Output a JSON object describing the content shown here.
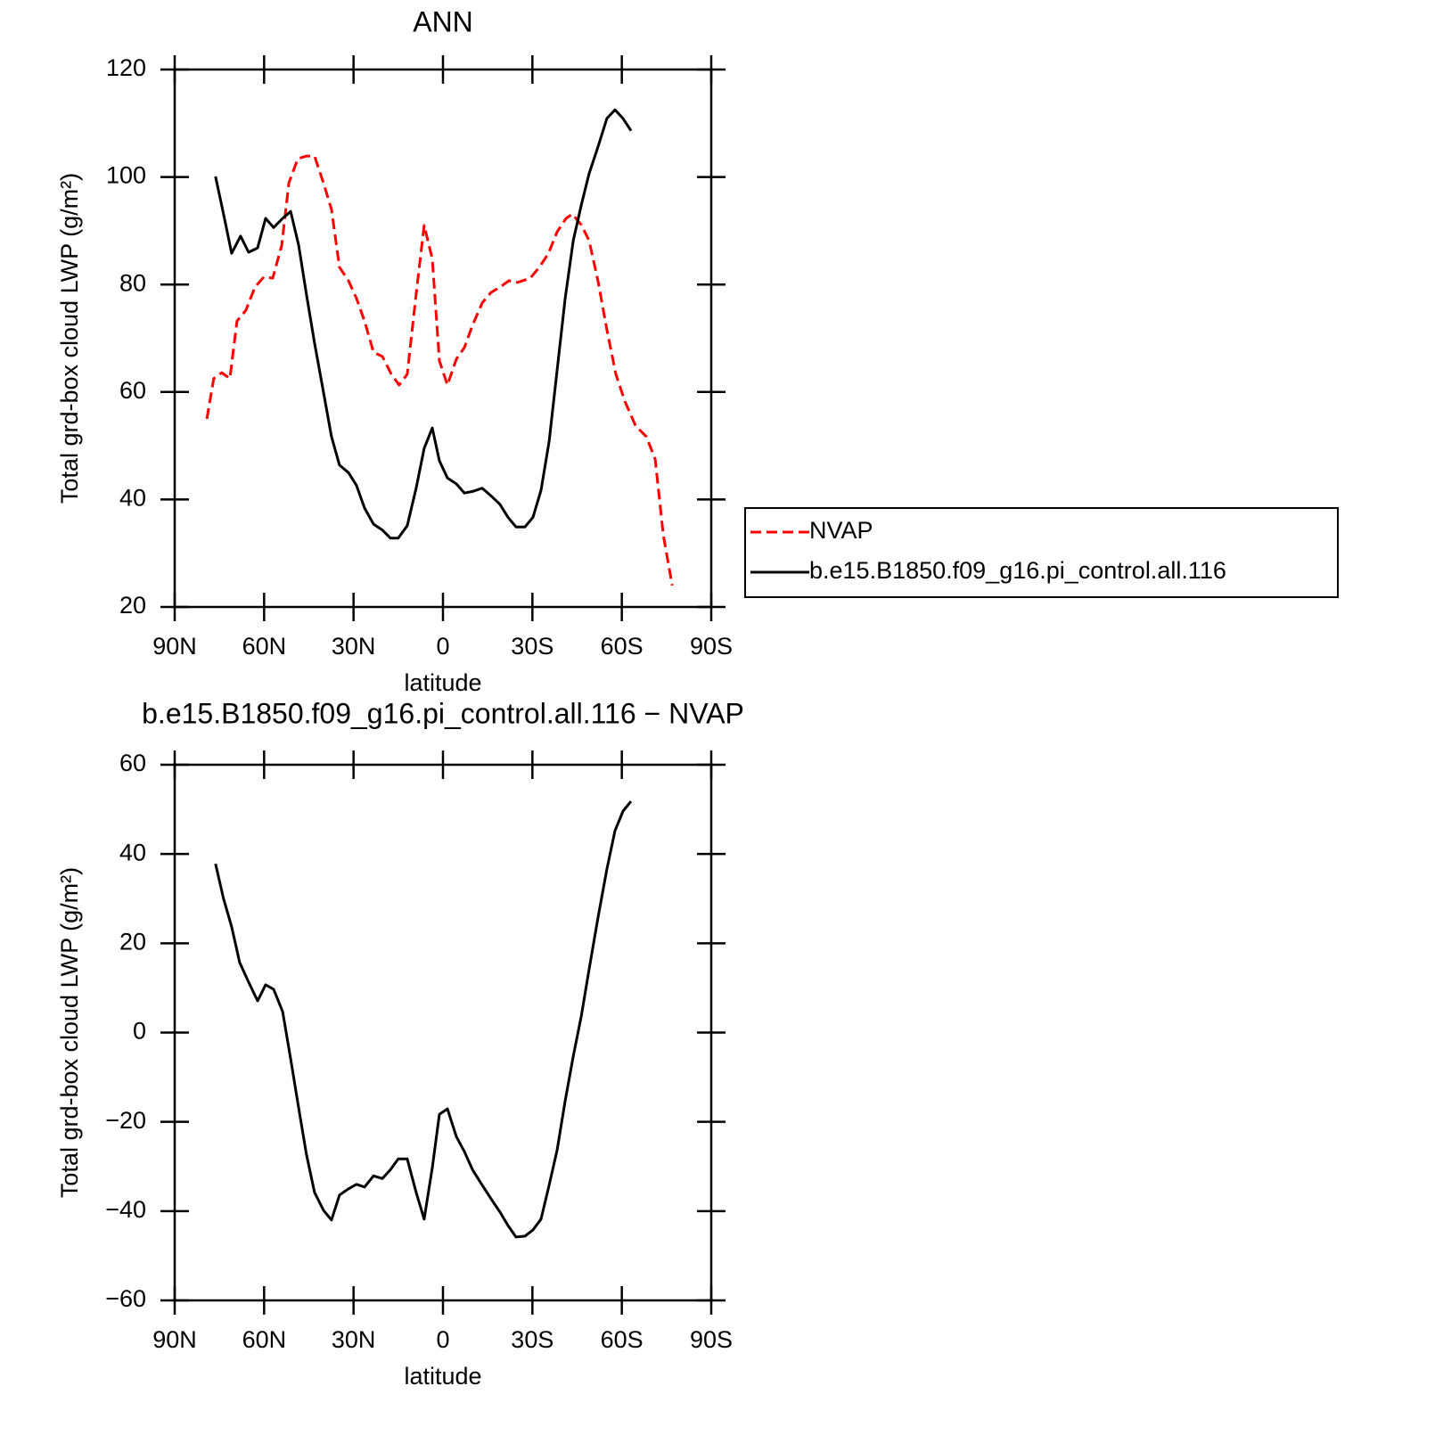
{
  "chart_data": [
    {
      "type": "line",
      "title": "ANN",
      "xlabel": "latitude",
      "ylabel": "Total grd-box cloud LWP (g/m²)",
      "xlim": [
        90,
        -90
      ],
      "xticks": [
        {
          "value": 90,
          "label": "90N"
        },
        {
          "value": 60,
          "label": "60N"
        },
        {
          "value": 30,
          "label": "30N"
        },
        0,
        {
          "value": -30,
          "label": "30S"
        },
        {
          "value": -60,
          "label": "60S"
        },
        {
          "value": -90,
          "label": "90S"
        }
      ],
      "ylim": [
        20,
        120
      ],
      "yticks": [
        20,
        40,
        60,
        80,
        100,
        120
      ],
      "legend": "right",
      "series": [
        {
          "name": "NVAP",
          "color": "#ff0000",
          "dashed": true,
          "x": [
            79.2,
            76.9,
            74.2,
            71.5,
            69.1,
            66.1,
            63.1,
            60.1,
            57.1,
            54.1,
            51.7,
            48.7,
            45.8,
            43.1,
            40.1,
            37.4,
            34.7,
            31.7,
            29.0,
            26.3,
            23.3,
            20.3,
            17.3,
            14.7,
            12.0,
            9.0,
            6.3,
            3.6,
            1.2,
            -1.5,
            -4.5,
            -7.2,
            -9.9,
            -13.2,
            -16.1,
            -19.1,
            -22.1,
            -25.1,
            -29.3,
            -32.3,
            -35.3,
            -38.3,
            -41.3,
            -43.4,
            -46.4,
            -49.0,
            -52.0,
            -55.0,
            -58.0,
            -61.0,
            -64.6,
            -68.2,
            -71.2,
            -73.9,
            -76.9
          ],
          "values": [
            55,
            62.5,
            63.6,
            62.5,
            73.2,
            75.2,
            79.5,
            81.4,
            81.2,
            87.3,
            98.9,
            103.4,
            103.9,
            103.9,
            98.9,
            94.0,
            83.2,
            80.7,
            77.4,
            73.2,
            67.4,
            66.6,
            63.3,
            61.3,
            63.3,
            78.2,
            91.0,
            84.8,
            65.8,
            61.3,
            66.1,
            68.3,
            72.4,
            76.6,
            78.5,
            79.5,
            80.7,
            80.4,
            81.2,
            83.2,
            85.7,
            89.8,
            92.3,
            93.1,
            91.1,
            88.2,
            80.7,
            71.6,
            63.3,
            58.3,
            53.7,
            51.7,
            47.5,
            33.4,
            24.0
          ]
        },
        {
          "name": "b.e15.B1850.f09_g16.pi_control.all.116",
          "color": "#000000",
          "dashed": false,
          "x": [
            76.3,
            73.6,
            70.9,
            67.9,
            65.2,
            62.2,
            59.5,
            56.8,
            53.8,
            51.1,
            48.4,
            45.8,
            43.1,
            40.1,
            37.4,
            34.7,
            31.7,
            29.0,
            26.3,
            23.3,
            20.3,
            17.6,
            15.0,
            12.0,
            9.0,
            6.3,
            3.6,
            1.2,
            -1.5,
            -4.5,
            -7.2,
            -9.9,
            -13.2,
            -16.1,
            -19.1,
            -21.8,
            -24.5,
            -27.5,
            -30.2,
            -32.9,
            -35.6,
            -38.3,
            -41.0,
            -43.7,
            -46.4,
            -49.0,
            -52.0,
            -55.0,
            -57.7,
            -60.4,
            -63.1
          ],
          "values": [
            100.1,
            93.1,
            85.8,
            89.0,
            86.0,
            86.8,
            92.3,
            90.6,
            92.3,
            93.6,
            87.3,
            78.2,
            69.1,
            60.0,
            51.7,
            46.4,
            45.0,
            42.6,
            38.4,
            35.4,
            34.3,
            32.8,
            32.8,
            35.1,
            42.1,
            49.5,
            53.3,
            47.2,
            44.0,
            42.9,
            41.2,
            41.5,
            42.1,
            40.7,
            39.1,
            36.7,
            34.9,
            34.9,
            36.7,
            41.7,
            50.8,
            64.1,
            77.4,
            88.2,
            94.8,
            100.6,
            105.6,
            110.9,
            112.5,
            110.9,
            108.6
          ]
        }
      ]
    },
    {
      "type": "line",
      "title": "b.e15.B1850.f09_g16.pi_control.all.116 − NVAP",
      "xlabel": "latitude",
      "ylabel": "Total grd-box cloud LWP (g/m²)",
      "xlim": [
        90,
        -90
      ],
      "xticks": [
        {
          "value": 90,
          "label": "90N"
        },
        {
          "value": 60,
          "label": "60N"
        },
        {
          "value": 30,
          "label": "30N"
        },
        0,
        {
          "value": -30,
          "label": "30S"
        },
        {
          "value": -60,
          "label": "60S"
        },
        {
          "value": -90,
          "label": "90S"
        }
      ],
      "ylim": [
        -60,
        60
      ],
      "yticks": [
        {
          "value": -60,
          "label": "−60"
        },
        {
          "value": -40,
          "label": "−40"
        },
        {
          "value": -20,
          "label": "−20"
        },
        0,
        20,
        40,
        60
      ],
      "series": [
        {
          "color": "#000000",
          "dashed": false,
          "x": [
            76.3,
            73.6,
            70.9,
            68.2,
            65.2,
            62.2,
            59.5,
            56.8,
            53.8,
            51.1,
            48.4,
            45.8,
            43.1,
            40.1,
            37.4,
            34.7,
            31.7,
            29.0,
            26.3,
            23.3,
            20.3,
            17.6,
            15.0,
            12.0,
            9.0,
            6.3,
            3.6,
            1.2,
            -1.5,
            -4.5,
            -7.2,
            -9.9,
            -13.2,
            -16.1,
            -19.1,
            -21.8,
            -24.5,
            -27.5,
            -30.2,
            -32.9,
            -35.6,
            -38.3,
            -41.0,
            -43.7,
            -46.4,
            -49.0,
            -52.0,
            -55.0,
            -57.7,
            -60.4,
            -63.1
          ],
          "values": [
            37.8,
            30.0,
            23.7,
            15.7,
            11.3,
            7.1,
            10.7,
            9.7,
            4.7,
            -5.9,
            -16.9,
            -27.3,
            -35.8,
            -39.8,
            -42.0,
            -36.4,
            -35.0,
            -34.0,
            -34.6,
            -32.1,
            -32.7,
            -30.7,
            -28.3,
            -28.3,
            -35.8,
            -41.8,
            -30.3,
            -18.3,
            -17.1,
            -23.3,
            -26.7,
            -30.7,
            -34.2,
            -37.2,
            -40.2,
            -43.2,
            -45.8,
            -45.6,
            -44.2,
            -41.8,
            -34.2,
            -26.3,
            -15.3,
            -5.3,
            3.7,
            14.1,
            25.7,
            36.6,
            45.2,
            49.6,
            51.8
          ]
        }
      ]
    }
  ]
}
